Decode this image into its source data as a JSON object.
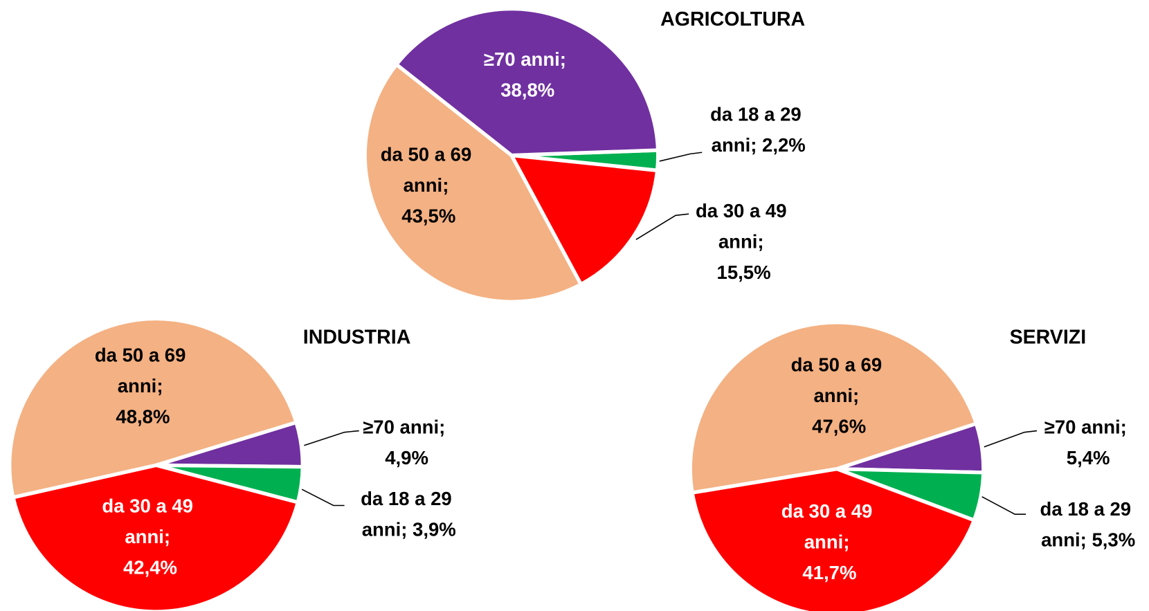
{
  "chart_data": [
    {
      "type": "pie",
      "title": "AGRICOLTURA",
      "values": [
        2.2,
        15.5,
        43.5,
        38.8
      ],
      "value_labels": [
        "da 18 a 29 anni; 2,2%",
        "da 30 a 49 anni; 15,5%",
        "da 50 a 69 anni; 43,5%",
        "≥70 anni; 38,8%"
      ],
      "colors": [
        "#00b050",
        "#ff0000",
        "#f4b183",
        "#7030a0"
      ],
      "label_colors": [
        "#000000",
        "#000000",
        "#000000",
        "#ffffff"
      ]
    },
    {
      "type": "pie",
      "title": "INDUSTRIA",
      "values": [
        4.9,
        3.9,
        42.4,
        48.8
      ],
      "value_labels": [
        "≥70 anni; 4,9%",
        "da 18 a 29 anni; 3,9%",
        "da 30 a 49 anni; 42,4%",
        "da 50 a 69 anni; 48,8%"
      ],
      "colors": [
        "#7030a0",
        "#00b050",
        "#ff0000",
        "#f4b183"
      ],
      "label_colors": [
        "#000000",
        "#000000",
        "#ffffff",
        "#000000"
      ]
    },
    {
      "type": "pie",
      "title": "SERVIZI",
      "values": [
        5.4,
        5.3,
        41.7,
        47.6
      ],
      "value_labels": [
        "≥70 anni; 5,4%",
        "da 18 a 29 anni; 5,3%",
        "da 30 a 49 anni; 41,7%",
        "da 50 a 69 anni; 47,6%"
      ],
      "colors": [
        "#7030a0",
        "#00b050",
        "#ff0000",
        "#f4b183"
      ],
      "label_colors": [
        "#000000",
        "#000000",
        "#ffffff",
        "#000000"
      ]
    }
  ]
}
